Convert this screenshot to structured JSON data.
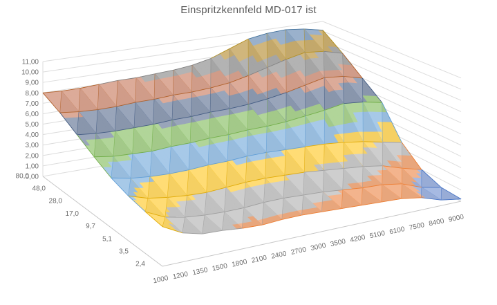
{
  "title": "Einspritzkennfeld MD-017  ist",
  "chart_data": {
    "type": "heatmap",
    "presentation": "3d-surface-wireframe",
    "title": "Einspritzkennfeld MD-017  ist",
    "legend": "none",
    "grid": "on",
    "x_axis": {
      "categories": [
        "1000",
        "1200",
        "1350",
        "1500",
        "1800",
        "2100",
        "2400",
        "2700",
        "3000",
        "3500",
        "4200",
        "5100",
        "6100",
        "7500",
        "8400",
        "9000"
      ]
    },
    "series_axis": {
      "categories": [
        "80,0",
        "48,0",
        "28,0",
        "17,0",
        "9,7",
        "5,1",
        "3,5",
        "2,4"
      ]
    },
    "value_axis": {
      "min": 0,
      "max": 11,
      "step": 1,
      "tick_labels": [
        "11,00",
        "10,00",
        "9,00",
        "8,00",
        "7,00",
        "6,00",
        "5,00",
        "4,00",
        "3,00",
        "2,00",
        "1,00",
        "0,00"
      ]
    },
    "values_rows_back_to_front": [
      [
        8.0,
        7.9,
        7.9,
        8.0,
        8.1,
        8.1,
        8.2,
        8.3,
        8.5,
        8.9,
        9.6,
        10.3,
        10.6,
        10.7,
        10.5,
        10.1
      ],
      [
        7.3,
        7.1,
        7.0,
        7.0,
        7.1,
        7.1,
        7.2,
        7.2,
        7.3,
        7.5,
        7.9,
        8.4,
        8.9,
        9.3,
        9.1,
        8.6
      ],
      [
        6.4,
        6.2,
        6.1,
        6.1,
        6.1,
        6.2,
        6.2,
        6.3,
        6.3,
        6.4,
        6.6,
        6.9,
        7.3,
        7.7,
        7.5,
        7.0
      ],
      [
        5.5,
        5.2,
        5.1,
        5.0,
        5.1,
        5.1,
        5.2,
        5.2,
        5.3,
        5.3,
        5.4,
        5.6,
        5.8,
        6.1,
        5.9,
        5.5
      ],
      [
        4.7,
        4.3,
        4.1,
        4.0,
        4.0,
        4.1,
        4.1,
        4.2,
        4.2,
        4.1,
        4.0,
        3.9,
        3.7,
        3.4,
        3.0,
        2.6
      ],
      [
        4.2,
        3.6,
        3.3,
        3.1,
        3.0,
        3.1,
        3.2,
        3.2,
        3.1,
        3.0,
        2.8,
        2.6,
        2.4,
        2.1,
        1.5,
        1.0
      ],
      [
        3.9,
        3.0,
        2.6,
        2.4,
        2.3,
        2.3,
        2.4,
        2.4,
        2.3,
        2.2,
        2.0,
        1.8,
        1.7,
        1.4,
        0.7,
        0.3
      ],
      [
        3.7,
        2.7,
        2.2,
        2.1,
        1.9,
        1.8,
        1.9,
        1.9,
        1.8,
        1.7,
        1.6,
        1.5,
        1.4,
        1.1,
        0.5,
        0.2
      ]
    ],
    "bands": [
      {
        "range": "0,00-1,00",
        "fill": "#9DB3DF",
        "stroke": "#4472C4"
      },
      {
        "range": "1,00-2,00",
        "fill": "#F2AC80",
        "stroke": "#ED7D31"
      },
      {
        "range": "2,00-3,00",
        "fill": "#C9C9C9",
        "stroke": "#9B9B9B"
      },
      {
        "range": "3,00-4,00",
        "fill": "#FFD966",
        "stroke": "#DFA800"
      },
      {
        "range": "4,00-5,00",
        "fill": "#9DC3E6",
        "stroke": "#5B9BD5"
      },
      {
        "range": "5,00-6,00",
        "fill": "#A9D18E",
        "stroke": "#70AD47"
      },
      {
        "range": "6,00-7,00",
        "fill": "#8E9BB3",
        "stroke": "#3F5880"
      },
      {
        "range": "7,00-8,00",
        "fill": "#D8A28E",
        "stroke": "#AE5D25"
      },
      {
        "range": "8,00-9,00",
        "fill": "#ABABAB",
        "stroke": "#808080"
      },
      {
        "range": "9,00-10,00",
        "fill": "#CBAE6E",
        "stroke": "#B38F1E"
      },
      {
        "range": "10,00-11,00",
        "fill": "#8FA9C7",
        "stroke": "#41719C"
      }
    ],
    "gridline_color": "#DCDCDC",
    "axis_line_color": "#C6C6C6",
    "label_color": "#6a6a6a"
  }
}
